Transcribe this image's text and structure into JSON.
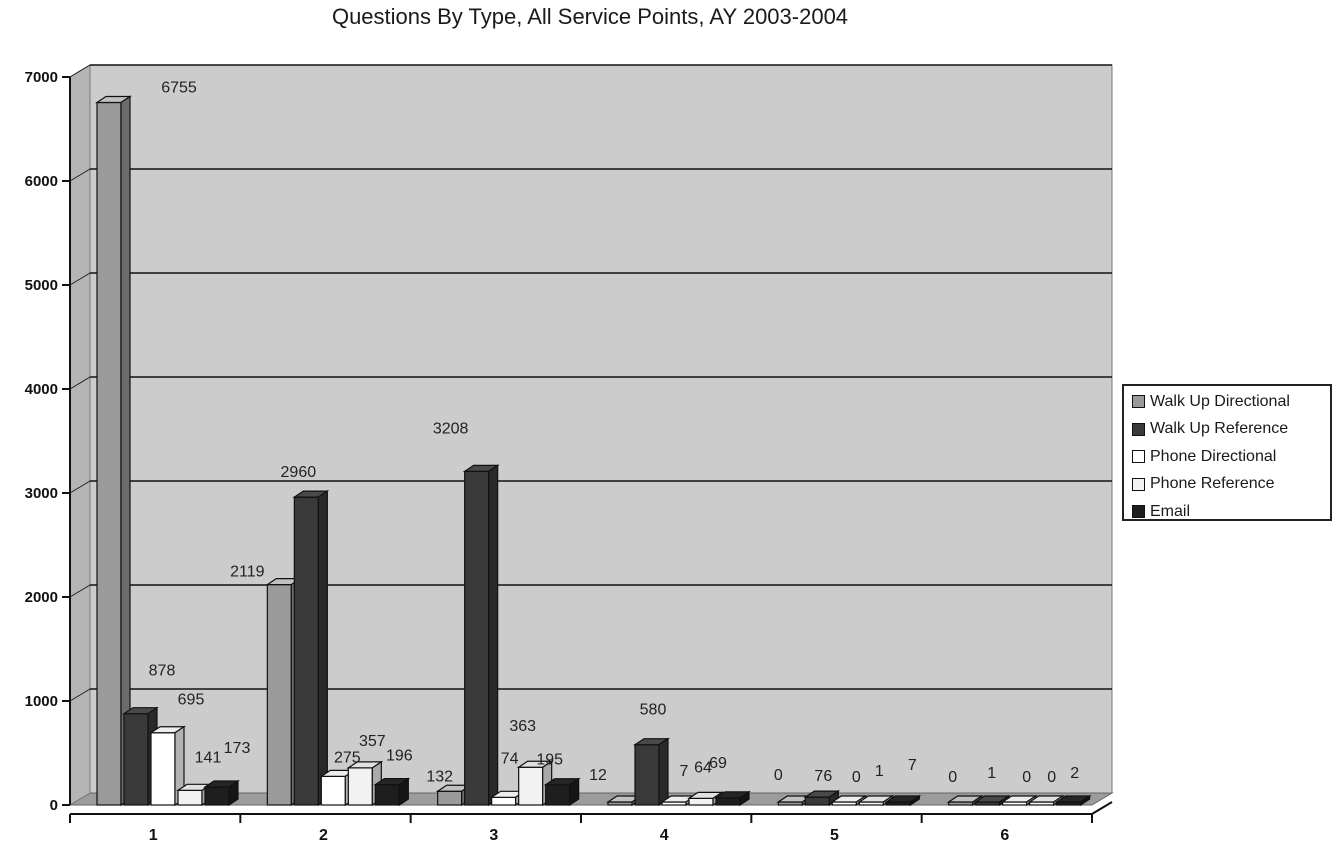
{
  "chart_data": {
    "type": "bar",
    "title": "Questions By Type, All Service Points, AY 2003-2004",
    "categories": [
      "1",
      "2",
      "3",
      "4",
      "5",
      "6"
    ],
    "series": [
      {
        "name": "Walk Up Directional",
        "values": [
          6755,
          2119,
          132,
          12,
          0,
          0
        ]
      },
      {
        "name": "Walk Up Reference",
        "values": [
          878,
          2960,
          3208,
          580,
          76,
          1
        ]
      },
      {
        "name": "Phone Directional",
        "values": [
          695,
          275,
          74,
          7,
          0,
          0
        ]
      },
      {
        "name": "Phone Reference",
        "values": [
          141,
          357,
          363,
          64,
          1,
          0
        ]
      },
      {
        "name": "Email",
        "values": [
          173,
          196,
          195,
          69,
          7,
          2
        ]
      }
    ],
    "y_ticks": [
      "0",
      "1000",
      "2000",
      "3000",
      "4000",
      "5000",
      "6000",
      "7000"
    ],
    "ylim": [
      0,
      7000
    ],
    "grid": true,
    "legend_position": "right",
    "colors": [
      "#9a9a9a",
      "#3a3a3a",
      "#ffffff",
      "#f2f2f2",
      "#1e1e1e"
    ],
    "background_color": "#cccccc"
  }
}
